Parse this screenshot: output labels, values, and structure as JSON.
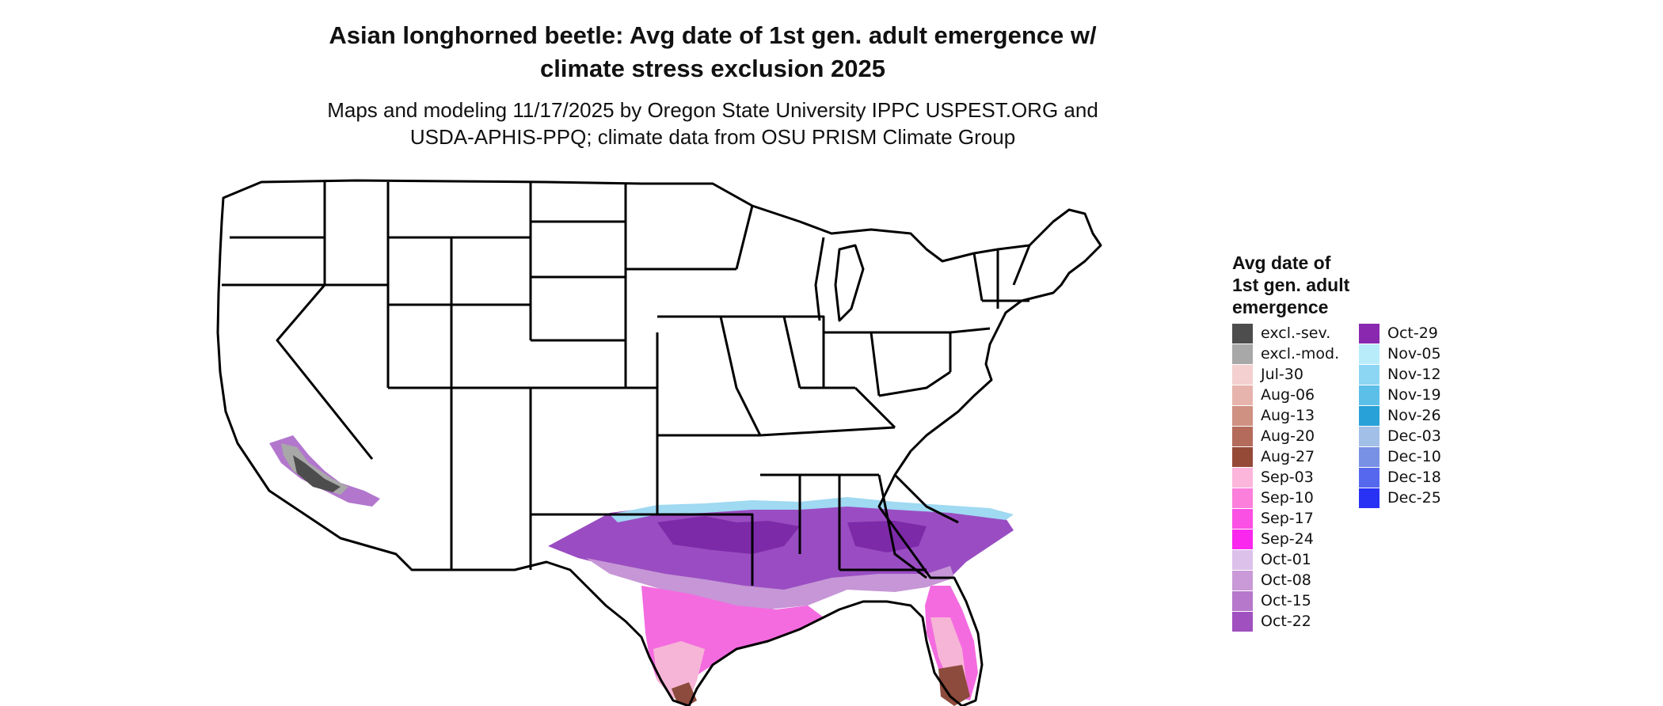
{
  "title": {
    "line1": "Asian longhorned beetle: Avg date of 1st gen. adult emergence w/",
    "line2": "climate stress exclusion 2025"
  },
  "subtitle": {
    "line1": "Maps and modeling 11/17/2025 by Oregon State University IPPC USPEST.ORG and",
    "line2": "USDA-APHIS-PPQ; climate data from OSU PRISM Climate Group"
  },
  "legend": {
    "title_line1": "Avg date of",
    "title_line2": "1st gen. adult",
    "title_line3": "emergence",
    "col1": [
      {
        "label": "excl.-sev.",
        "color": "#4d4d4d"
      },
      {
        "label": "excl.-mod.",
        "color": "#a8a8a8"
      },
      {
        "label": "Jul-30",
        "color": "#f4d0d0"
      },
      {
        "label": "Aug-06",
        "color": "#e6b4ac"
      },
      {
        "label": "Aug-13",
        "color": "#cf9182"
      },
      {
        "label": "Aug-20",
        "color": "#b46b5c"
      },
      {
        "label": "Aug-27",
        "color": "#954a38"
      },
      {
        "label": "Sep-03",
        "color": "#fcb6dc"
      },
      {
        "label": "Sep-10",
        "color": "#fc7fdb"
      },
      {
        "label": "Sep-17",
        "color": "#fb50e4"
      },
      {
        "label": "Sep-24",
        "color": "#fa27ee"
      },
      {
        "label": "Oct-01",
        "color": "#dcc1eb"
      },
      {
        "label": "Oct-08",
        "color": "#c99ad7"
      },
      {
        "label": "Oct-15",
        "color": "#b578cb"
      },
      {
        "label": "Oct-22",
        "color": "#a050bf"
      }
    ],
    "col2": [
      {
        "label": "Oct-29",
        "color": "#8a28b0"
      },
      {
        "label": "Nov-05",
        "color": "#b8ecfb"
      },
      {
        "label": "Nov-12",
        "color": "#8cd6f3"
      },
      {
        "label": "Nov-19",
        "color": "#5cbfe8"
      },
      {
        "label": "Nov-26",
        "color": "#28a1d8"
      },
      {
        "label": "Dec-03",
        "color": "#a2bfe8"
      },
      {
        "label": "Dec-10",
        "color": "#7891e4"
      },
      {
        "label": "Dec-18",
        "color": "#5568ee"
      },
      {
        "label": "Dec-25",
        "color": "#2832f4"
      }
    ]
  },
  "map": {
    "region": "Contiguous United States",
    "colors": {
      "state_fill": "#ffffff",
      "state_border": "#000000",
      "gulf_band": "#9a4dc2",
      "gulf_band_dark": "#7d2aa8",
      "north_fringe": "#9fd9f2",
      "pink_coast": "#f46be0",
      "light_pink": "#f6b5d6",
      "brown_tip": "#8c4b3c",
      "excluded_severe": "#4d4d4d",
      "excluded_moderate": "#a8a8a8",
      "lilac": "#c696d6"
    }
  }
}
